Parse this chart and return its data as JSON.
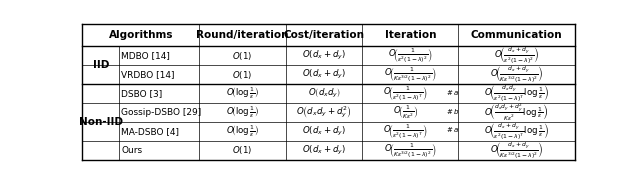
{
  "figsize": [
    6.4,
    1.81
  ],
  "dpi": 100,
  "bg_color": "#ffffff",
  "header": [
    "Algorithms",
    "Round/iteration",
    "Cost/iteration",
    "Iteration",
    "Communication"
  ],
  "iid_label": "IID",
  "noniid_label": "Non-IID",
  "rows": [
    {
      "group": "IID",
      "algo": "MDBO [14]",
      "round": "$O(1)$",
      "cost": "$O(d_x+d_y)$",
      "iter": "$O\\!\\left(\\frac{1}{\\epsilon^2(1-\\lambda)^2}\\right)$",
      "comm": "$O\\!\\left(\\frac{d_x+d_y}{\\epsilon^2(1-\\lambda)^2}\\right)$",
      "footnote": ""
    },
    {
      "group": "IID",
      "algo": "VRDBO [14]",
      "round": "$O(1)$",
      "cost": "$O(d_x+d_y)$",
      "iter": "$O\\!\\left(\\frac{1}{K\\epsilon^{3/2}(1-\\lambda)^2}\\right)$",
      "comm": "$O\\!\\left(\\frac{d_x+d_y}{K\\epsilon^{3/2}(1-\\lambda)^2}\\right)$",
      "footnote": ""
    },
    {
      "group": "Non-IID",
      "algo": "DSBO [3]",
      "round": "$O\\!\\left(\\log\\frac{1}{\\epsilon}\\right)$",
      "cost": "$O\\left(d_x d_y\\right)$",
      "iter": "$O\\!\\left(\\frac{1}{\\epsilon^2(1-\\lambda)^7}\\right)$",
      "comm": "$O\\!\\left(\\frac{d_x d_y}{\\epsilon^2(1-\\lambda)^7}\\log\\frac{1}{\\epsilon}\\right)$",
      "footnote": "\\#\\,a"
    },
    {
      "group": "Non-IID",
      "algo": "Gossip-DSBO [29]",
      "round": "$O\\!\\left(\\log\\frac{1}{\\epsilon}\\right)$",
      "cost": "$O\\left(d_x d_y+d_y^2\\right)$",
      "iter": "$O\\!\\left(\\frac{1}{K\\epsilon^2}\\right)$",
      "comm": "$O\\!\\left(\\frac{d_x d_y+d_y^2}{K\\epsilon^2}\\log\\frac{1}{\\epsilon}\\right)$",
      "footnote": "\\#\\,b"
    },
    {
      "group": "Non-IID",
      "algo": "MA-DSBO [4]",
      "round": "$O\\!\\left(\\log\\frac{1}{\\epsilon}\\right)$",
      "cost": "$O(d_x+d_y)$",
      "iter": "$O\\!\\left(\\frac{1}{\\epsilon^2(1-\\lambda)^7}\\right)$",
      "comm": "$O\\!\\left(\\frac{d_x+d_y}{\\epsilon^2(1-\\lambda)^7}\\log\\frac{1}{\\epsilon}\\right)$",
      "footnote": "\\#\\,a"
    },
    {
      "group": "Non-IID",
      "algo": "Ours",
      "round": "$O(1)$",
      "cost": "$O(d_x+d_y)$",
      "iter": "$O\\!\\left(\\frac{1}{K\\epsilon^{3/2}(1-\\lambda)^2}\\right)$",
      "comm": "$O\\!\\left(\\frac{d_x+d_y}{K\\epsilon^{3/2}(1-\\lambda)^2}\\right)$",
      "footnote": ""
    }
  ]
}
